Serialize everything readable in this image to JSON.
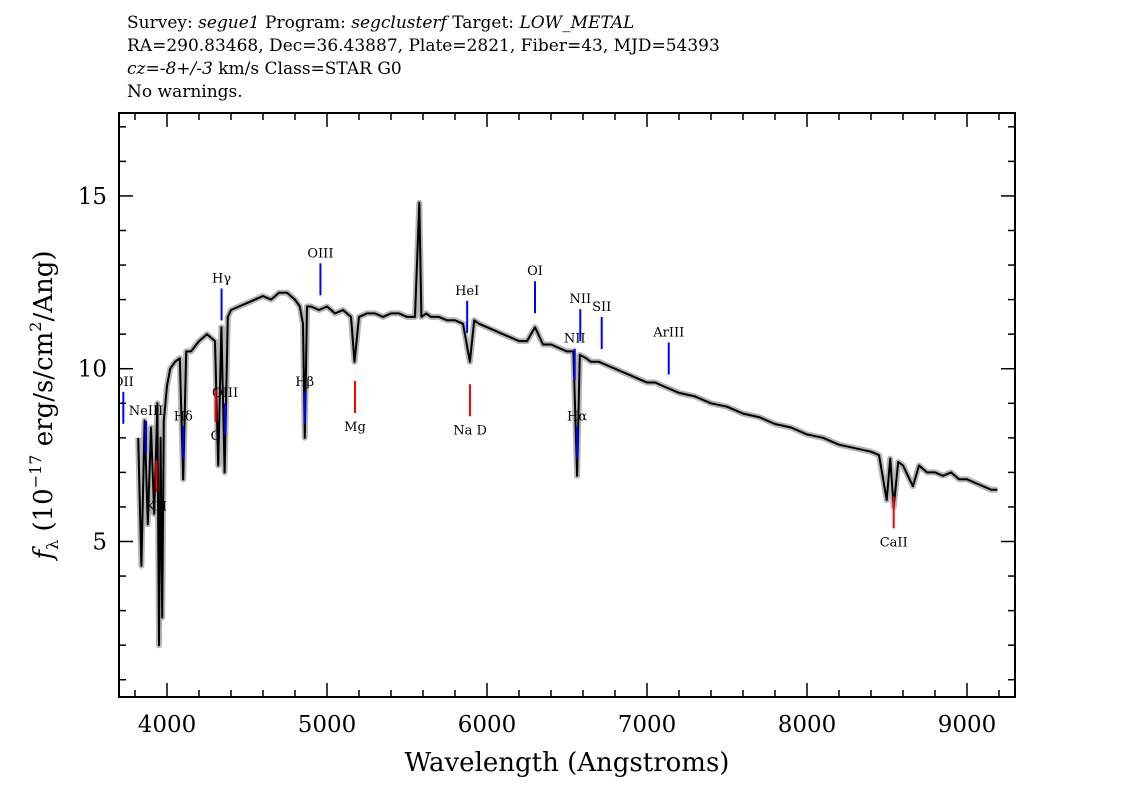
{
  "header": {
    "survey_label": "Survey:",
    "survey": "segue1",
    "program_label": "Program:",
    "program": "segclusterf",
    "target_label": "Target:",
    "target": "LOW_METAL",
    "line2": "RA=290.83468, Dec=36.43887, Plate=2821, Fiber=43, MJD=54393",
    "cz": "cz=",
    "cz_value": "-8+/-3",
    "cz_rest": " km/s Class=STAR G0",
    "line4": "No warnings."
  },
  "chart_data": {
    "type": "line",
    "xlabel": "Wavelength (Angstroms)",
    "ylabel_prefix": "f",
    "ylabel_sub": "λ",
    "ylabel_main": " (10",
    "ylabel_sup": "−17",
    "ylabel_rest": " erg/s/cm",
    "ylabel_sup2": "2",
    "ylabel_end": "/Ang)",
    "xlim": [
      3700,
      9300
    ],
    "ylim": [
      0.5,
      17.4
    ],
    "x_ticks": [
      4000,
      5000,
      6000,
      7000,
      8000,
      9000
    ],
    "x_tick_labels": [
      "4000",
      "5000",
      "6000",
      "7000",
      "8000",
      "9000"
    ],
    "y_ticks": [
      5,
      10,
      15
    ],
    "y_tick_labels": [
      "5",
      "10",
      "15"
    ],
    "grid": false,
    "series": [
      {
        "color": "#000000",
        "error_color": "#b5b5b5",
        "x": [
          3820,
          3840,
          3860,
          3880,
          3900,
          3920,
          3940,
          3950,
          3960,
          3970,
          3980,
          4000,
          4020,
          4050,
          4080,
          4101,
          4120,
          4150,
          4200,
          4250,
          4300,
          4320,
          4340,
          4360,
          4380,
          4400,
          4450,
          4500,
          4550,
          4600,
          4650,
          4700,
          4750,
          4800,
          4830,
          4850,
          4861,
          4875,
          4900,
          4950,
          5000,
          5050,
          5100,
          5150,
          5172,
          5200,
          5250,
          5300,
          5350,
          5400,
          5450,
          5500,
          5550,
          5577,
          5590,
          5620,
          5650,
          5700,
          5750,
          5800,
          5850,
          5893,
          5920,
          5950,
          6000,
          6050,
          6100,
          6150,
          6200,
          6250,
          6300,
          6350,
          6400,
          6450,
          6500,
          6540,
          6563,
          6580,
          6620,
          6650,
          6700,
          6750,
          6800,
          6850,
          6900,
          6950,
          7000,
          7050,
          7100,
          7150,
          7200,
          7300,
          7400,
          7500,
          7600,
          7700,
          7800,
          7900,
          8000,
          8100,
          8200,
          8300,
          8400,
          8450,
          8498,
          8520,
          8542,
          8570,
          8600,
          8662,
          8700,
          8750,
          8800,
          8850,
          8900,
          8950,
          9000,
          9050,
          9100,
          9150,
          9190
        ],
        "y": [
          8.0,
          4.3,
          8.5,
          5.5,
          8.3,
          5.8,
          9.0,
          2.0,
          8.0,
          2.8,
          8.5,
          9.5,
          10.0,
          10.2,
          10.3,
          6.8,
          10.5,
          10.5,
          10.8,
          11.0,
          10.8,
          7.2,
          11.2,
          7.0,
          11.5,
          11.7,
          11.8,
          11.9,
          12.0,
          12.1,
          12.0,
          12.2,
          12.2,
          12.0,
          11.8,
          11.3,
          8.0,
          11.8,
          11.8,
          11.7,
          11.8,
          11.6,
          11.7,
          11.5,
          10.2,
          11.5,
          11.6,
          11.6,
          11.5,
          11.6,
          11.6,
          11.5,
          11.5,
          14.8,
          11.5,
          11.6,
          11.5,
          11.5,
          11.4,
          11.4,
          11.3,
          10.2,
          11.4,
          11.3,
          11.2,
          11.1,
          11.0,
          10.9,
          10.8,
          10.8,
          11.2,
          10.7,
          10.7,
          10.6,
          10.5,
          10.5,
          6.9,
          10.4,
          10.3,
          10.2,
          10.2,
          10.1,
          10.0,
          9.9,
          9.8,
          9.7,
          9.6,
          9.6,
          9.5,
          9.4,
          9.3,
          9.2,
          9.0,
          8.9,
          8.7,
          8.6,
          8.4,
          8.3,
          8.1,
          8.0,
          7.8,
          7.7,
          7.6,
          7.5,
          6.2,
          7.4,
          6.0,
          7.3,
          7.2,
          6.6,
          7.2,
          7.0,
          7.0,
          6.9,
          7.0,
          6.8,
          6.8,
          6.7,
          6.6,
          6.5,
          6.5
        ]
      }
    ],
    "annotations": [
      {
        "label": "OII",
        "x": 3727,
        "color": "#0000ff"
      },
      {
        "label": "NeIII",
        "x": 3869,
        "color": "#0000ff"
      },
      {
        "label": "Hδ",
        "x": 4102,
        "color": "#0000ff"
      },
      {
        "label": "Hγ",
        "x": 4341,
        "color": "#0000ff"
      },
      {
        "label": "OIII",
        "x": 4363,
        "color": "#0000ff"
      },
      {
        "label": "Hβ",
        "x": 4861,
        "color": "#0000ff"
      },
      {
        "label": "OIII",
        "x": 4959,
        "color": "#0000ff"
      },
      {
        "label": "HeI",
        "x": 5876,
        "color": "#0000ff"
      },
      {
        "label": "OI",
        "x": 6300,
        "color": "#0000ff"
      },
      {
        "label": "NII",
        "x": 6548,
        "color": "#0000ff"
      },
      {
        "label": "Hα",
        "x": 6563,
        "color": "#0000ff"
      },
      {
        "label": "NII",
        "x": 6583,
        "color": "#0000ff"
      },
      {
        "label": "SII",
        "x": 6717,
        "color": "#0000ff"
      },
      {
        "label": "ArIII",
        "x": 7136,
        "color": "#0000ff"
      },
      {
        "label": "KH",
        "x": 3934,
        "color": "#ff0000"
      },
      {
        "label": "G",
        "x": 4304,
        "color": "#ff0000"
      },
      {
        "label": "Mg",
        "x": 5175,
        "color": "#ff0000"
      },
      {
        "label": "Na D",
        "x": 5894,
        "color": "#ff0000"
      },
      {
        "label": "CaII",
        "x": 8542,
        "color": "#ff0000"
      }
    ]
  }
}
